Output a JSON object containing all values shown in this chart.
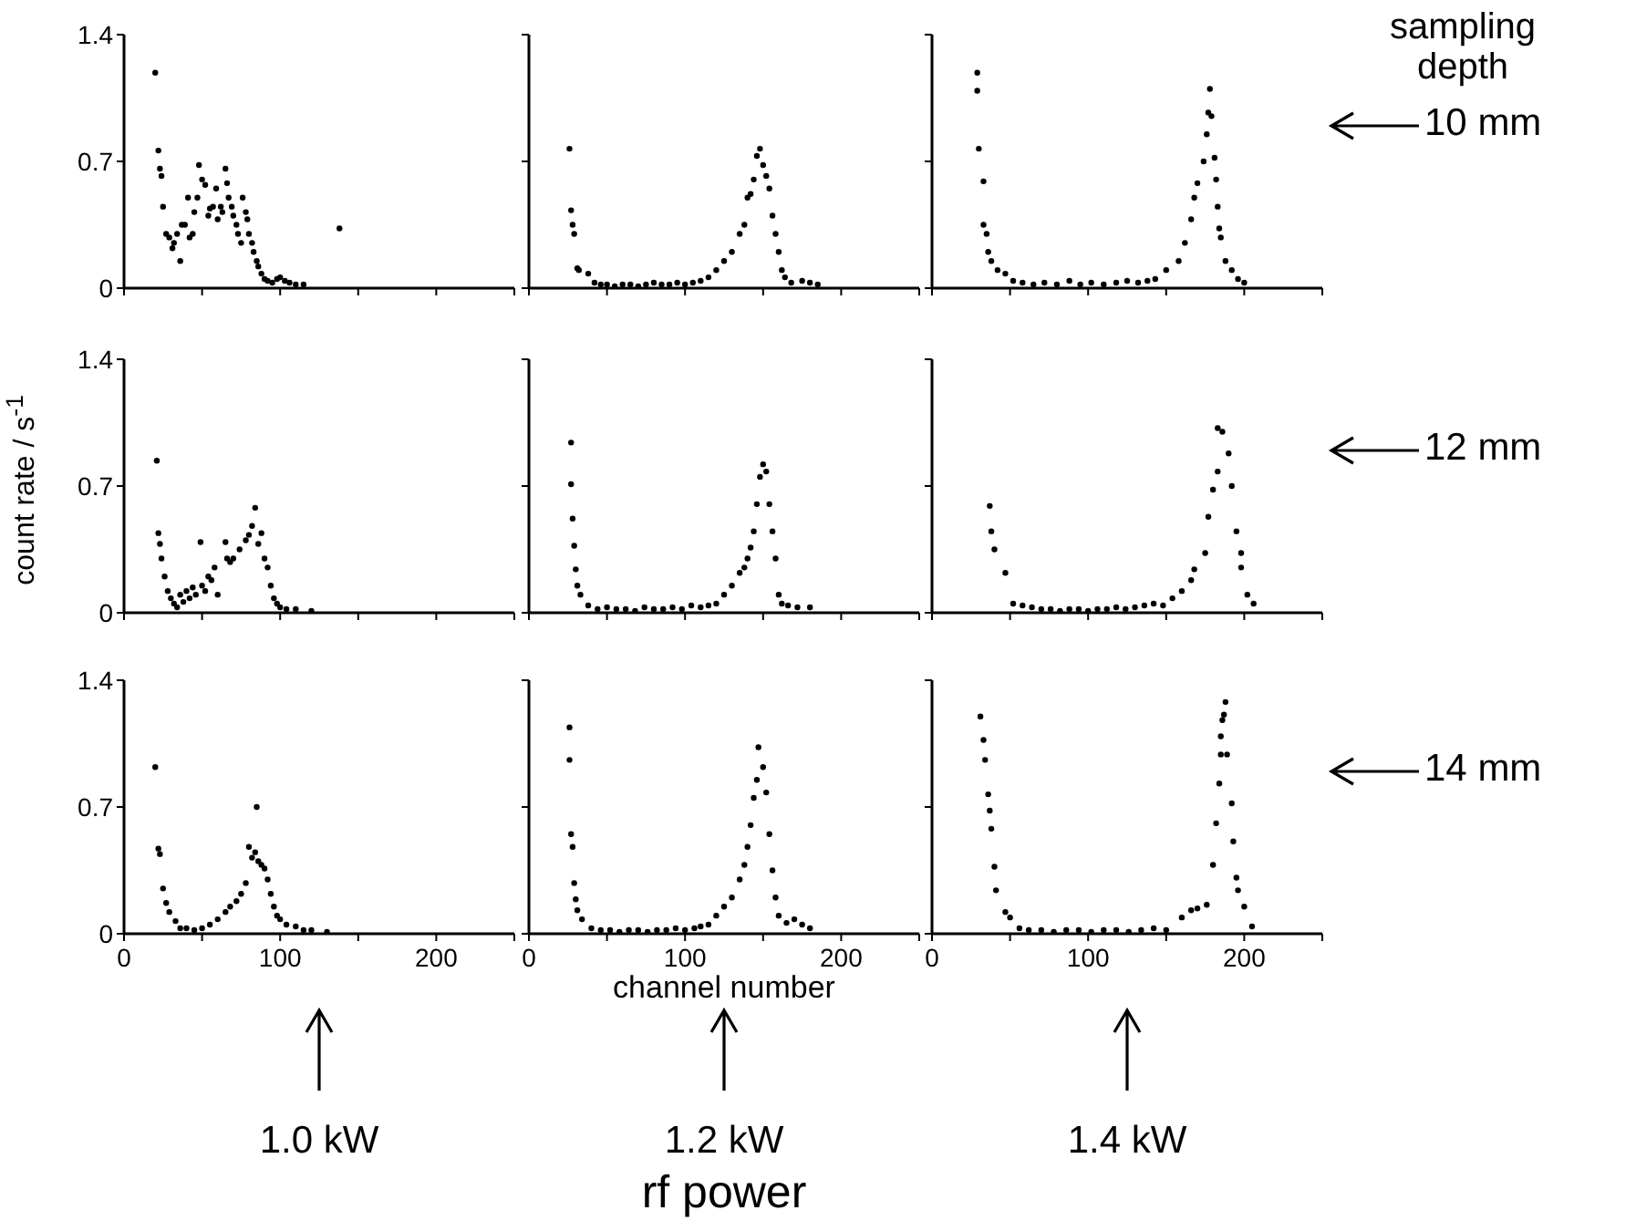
{
  "chart_data": [
    {
      "type": "scatter",
      "color": "#000000",
      "marker": "circle",
      "xlim": [
        0,
        250
      ],
      "xticks": [
        {
          "value": 0,
          "label": null
        },
        {
          "value": 50,
          "label": null
        },
        {
          "value": 100,
          "label": null
        },
        {
          "value": 150,
          "label": null
        },
        {
          "value": 200,
          "label": null
        },
        {
          "value": 250,
          "label": null
        }
      ],
      "ylim": [
        0,
        1.4
      ],
      "yticks": [
        0,
        0.7,
        1.4
      ],
      "tick_labels": "y",
      "x": [
        20,
        22,
        23,
        24,
        25,
        27,
        29,
        31,
        32,
        34,
        36,
        37,
        39,
        41,
        42,
        44,
        45,
        47,
        48,
        50,
        52,
        54,
        55,
        57,
        59,
        60,
        62,
        63,
        65,
        66,
        67,
        69,
        70,
        72,
        73,
        75,
        76,
        78,
        79,
        80,
        82,
        83,
        85,
        86,
        88,
        90,
        92,
        95,
        98,
        100,
        103,
        106,
        110,
        115,
        138
      ],
      "values": [
        1.19,
        0.76,
        0.66,
        0.62,
        0.45,
        0.3,
        0.28,
        0.22,
        0.25,
        0.3,
        0.15,
        0.35,
        0.35,
        0.5,
        0.28,
        0.3,
        0.42,
        0.5,
        0.68,
        0.6,
        0.57,
        0.4,
        0.44,
        0.45,
        0.55,
        0.38,
        0.45,
        0.42,
        0.66,
        0.58,
        0.5,
        0.45,
        0.4,
        0.35,
        0.3,
        0.25,
        0.5,
        0.42,
        0.38,
        0.3,
        0.25,
        0.2,
        0.15,
        0.12,
        0.08,
        0.05,
        0.04,
        0.03,
        0.05,
        0.06,
        0.04,
        0.03,
        0.02,
        0.02,
        0.33
      ]
    },
    {
      "type": "scatter",
      "color": "#000000",
      "marker": "circle",
      "xlim": [
        0,
        250
      ],
      "xticks": [
        {
          "value": 0,
          "label": null
        },
        {
          "value": 50,
          "label": null
        },
        {
          "value": 100,
          "label": null
        },
        {
          "value": 150,
          "label": null
        },
        {
          "value": 200,
          "label": null
        },
        {
          "value": 250,
          "label": null
        }
      ],
      "ylim": [
        0,
        1.4
      ],
      "yticks": [
        {
          "value": 0,
          "label": null
        },
        {
          "value": 0.7,
          "label": null
        },
        {
          "value": 1.4,
          "label": null
        }
      ],
      "tick_labels": false,
      "x": [
        26,
        27,
        28,
        29,
        31,
        32,
        38,
        42,
        46,
        50,
        55,
        60,
        65,
        70,
        75,
        80,
        85,
        90,
        95,
        100,
        105,
        110,
        115,
        120,
        125,
        130,
        135,
        138,
        140,
        142,
        144,
        146,
        148,
        150,
        152,
        154,
        156,
        158,
        160,
        162,
        164,
        168,
        175,
        180,
        185
      ],
      "values": [
        0.77,
        0.43,
        0.35,
        0.3,
        0.11,
        0.1,
        0.08,
        0.03,
        0.02,
        0.02,
        0.01,
        0.02,
        0.02,
        0.01,
        0.02,
        0.03,
        0.02,
        0.02,
        0.03,
        0.02,
        0.03,
        0.04,
        0.06,
        0.1,
        0.15,
        0.2,
        0.3,
        0.35,
        0.5,
        0.52,
        0.6,
        0.73,
        0.77,
        0.68,
        0.62,
        0.55,
        0.4,
        0.3,
        0.2,
        0.1,
        0.06,
        0.03,
        0.04,
        0.03,
        0.02
      ]
    },
    {
      "type": "scatter",
      "color": "#000000",
      "marker": "circle",
      "xlim": [
        0,
        250
      ],
      "xticks": [
        {
          "value": 0,
          "label": null
        },
        {
          "value": 50,
          "label": null
        },
        {
          "value": 100,
          "label": null
        },
        {
          "value": 150,
          "label": null
        },
        {
          "value": 200,
          "label": null
        },
        {
          "value": 250,
          "label": null
        }
      ],
      "ylim": [
        0,
        1.4
      ],
      "yticks": [
        {
          "value": 0,
          "label": null
        },
        {
          "value": 0.7,
          "label": null
        },
        {
          "value": 1.4,
          "label": null
        }
      ],
      "tick_labels": false,
      "annotations": [
        "sampling depth",
        "10 mm"
      ],
      "x": [
        29,
        29,
        30,
        33,
        33,
        35,
        36,
        38,
        42,
        47,
        52,
        58,
        65,
        72,
        80,
        88,
        95,
        102,
        110,
        118,
        125,
        132,
        138,
        143,
        150,
        158,
        162,
        166,
        168,
        170,
        174,
        176,
        177,
        178,
        179,
        181,
        182,
        183,
        184,
        185,
        188,
        192,
        196,
        200
      ],
      "values": [
        1.19,
        1.09,
        0.77,
        0.59,
        0.35,
        0.3,
        0.2,
        0.15,
        0.1,
        0.08,
        0.04,
        0.03,
        0.02,
        0.03,
        0.02,
        0.04,
        0.02,
        0.03,
        0.02,
        0.03,
        0.04,
        0.03,
        0.04,
        0.05,
        0.1,
        0.15,
        0.25,
        0.38,
        0.5,
        0.58,
        0.7,
        0.85,
        0.97,
        1.1,
        0.95,
        0.72,
        0.6,
        0.45,
        0.33,
        0.28,
        0.15,
        0.1,
        0.05,
        0.03
      ]
    },
    {
      "type": "scatter",
      "color": "#000000",
      "marker": "circle",
      "xlim": [
        0,
        250
      ],
      "xticks": [
        {
          "value": 0,
          "label": null
        },
        {
          "value": 50,
          "label": null
        },
        {
          "value": 100,
          "label": null
        },
        {
          "value": 150,
          "label": null
        },
        {
          "value": 200,
          "label": null
        },
        {
          "value": 250,
          "label": null
        }
      ],
      "ylim": [
        0,
        1.4
      ],
      "yticks": [
        0,
        0.7,
        1.4
      ],
      "tick_labels": "y",
      "ylabel": "count rate / s$^{-1}$",
      "x": [
        21,
        22,
        23,
        24,
        26,
        28,
        30,
        32,
        34,
        36,
        38,
        40,
        42,
        44,
        46,
        49,
        50,
        52,
        54,
        56,
        58,
        60,
        65,
        66,
        68,
        70,
        74,
        78,
        80,
        82,
        84,
        86,
        88,
        90,
        92,
        94,
        96,
        98,
        100,
        104,
        110,
        120
      ],
      "values": [
        0.84,
        0.44,
        0.38,
        0.3,
        0.2,
        0.12,
        0.08,
        0.05,
        0.03,
        0.1,
        0.06,
        0.12,
        0.08,
        0.14,
        0.1,
        0.39,
        0.15,
        0.12,
        0.2,
        0.18,
        0.25,
        0.1,
        0.39,
        0.3,
        0.28,
        0.3,
        0.35,
        0.4,
        0.43,
        0.48,
        0.58,
        0.38,
        0.44,
        0.3,
        0.25,
        0.15,
        0.08,
        0.05,
        0.03,
        0.02,
        0.02,
        0.01
      ]
    },
    {
      "type": "scatter",
      "color": "#000000",
      "marker": "circle",
      "xlim": [
        0,
        250
      ],
      "xticks": [
        {
          "value": 0,
          "label": null
        },
        {
          "value": 50,
          "label": null
        },
        {
          "value": 100,
          "label": null
        },
        {
          "value": 150,
          "label": null
        },
        {
          "value": 200,
          "label": null
        },
        {
          "value": 250,
          "label": null
        }
      ],
      "ylim": [
        0,
        1.4
      ],
      "yticks": [
        {
          "value": 0,
          "label": null
        },
        {
          "value": 0.7,
          "label": null
        },
        {
          "value": 1.4,
          "label": null
        }
      ],
      "tick_labels": false,
      "x": [
        27,
        27,
        28,
        29,
        30,
        31,
        33,
        38,
        44,
        50,
        56,
        62,
        68,
        74,
        80,
        86,
        92,
        98,
        104,
        110,
        115,
        120,
        125,
        130,
        135,
        138,
        140,
        142,
        144,
        146,
        148,
        150,
        152,
        154,
        156,
        158,
        160,
        162,
        166,
        172,
        180
      ],
      "values": [
        0.94,
        0.71,
        0.52,
        0.37,
        0.24,
        0.15,
        0.1,
        0.04,
        0.02,
        0.03,
        0.02,
        0.02,
        0.01,
        0.03,
        0.02,
        0.02,
        0.03,
        0.02,
        0.04,
        0.03,
        0.04,
        0.05,
        0.1,
        0.15,
        0.22,
        0.25,
        0.3,
        0.36,
        0.45,
        0.6,
        0.75,
        0.82,
        0.78,
        0.6,
        0.45,
        0.3,
        0.1,
        0.05,
        0.04,
        0.03,
        0.03
      ]
    },
    {
      "type": "scatter",
      "color": "#000000",
      "marker": "circle",
      "xlim": [
        0,
        250
      ],
      "xticks": [
        {
          "value": 0,
          "label": null
        },
        {
          "value": 50,
          "label": null
        },
        {
          "value": 100,
          "label": null
        },
        {
          "value": 150,
          "label": null
        },
        {
          "value": 200,
          "label": null
        },
        {
          "value": 250,
          "label": null
        }
      ],
      "ylim": [
        0,
        1.4
      ],
      "yticks": [
        {
          "value": 0,
          "label": null
        },
        {
          "value": 0.7,
          "label": null
        },
        {
          "value": 1.4,
          "label": null
        }
      ],
      "tick_labels": false,
      "annotations": [
        "12 mm"
      ],
      "x": [
        37,
        38,
        40,
        47,
        52,
        58,
        64,
        70,
        76,
        82,
        88,
        94,
        100,
        106,
        112,
        118,
        124,
        130,
        136,
        142,
        148,
        154,
        160,
        166,
        168,
        175,
        177,
        180,
        183,
        183,
        186,
        190,
        192,
        195,
        198,
        198,
        202,
        206
      ],
      "values": [
        0.59,
        0.45,
        0.35,
        0.22,
        0.05,
        0.04,
        0.03,
        0.02,
        0.02,
        0.01,
        0.02,
        0.02,
        0.01,
        0.02,
        0.02,
        0.03,
        0.02,
        0.03,
        0.04,
        0.05,
        0.04,
        0.08,
        0.12,
        0.18,
        0.24,
        0.33,
        0.53,
        0.68,
        0.78,
        1.02,
        1.0,
        0.88,
        0.7,
        0.45,
        0.33,
        0.25,
        0.1,
        0.05
      ]
    },
    {
      "type": "scatter",
      "color": "#000000",
      "marker": "circle",
      "xlim": [
        0,
        250
      ],
      "xticks": [
        0,
        {
          "value": 50,
          "label": null
        },
        100,
        {
          "value": 150,
          "label": null
        },
        200,
        {
          "value": 250,
          "label": null
        }
      ],
      "ylim": [
        0,
        1.4
      ],
      "yticks": [
        0,
        0.7,
        1.4
      ],
      "annotations": [
        "1.0 kW"
      ],
      "x": [
        20,
        22,
        23,
        25,
        27,
        29,
        33,
        36,
        40,
        45,
        50,
        55,
        60,
        65,
        68,
        72,
        75,
        78,
        80,
        82,
        84,
        85,
        86,
        88,
        90,
        92,
        94,
        96,
        98,
        100,
        104,
        110,
        115,
        120,
        130
      ],
      "values": [
        0.92,
        0.47,
        0.44,
        0.25,
        0.17,
        0.12,
        0.07,
        0.03,
        0.03,
        0.02,
        0.03,
        0.05,
        0.08,
        0.12,
        0.15,
        0.18,
        0.22,
        0.28,
        0.48,
        0.42,
        0.45,
        0.7,
        0.4,
        0.38,
        0.36,
        0.3,
        0.22,
        0.15,
        0.1,
        0.08,
        0.05,
        0.04,
        0.02,
        0.02,
        0.01
      ]
    },
    {
      "type": "scatter",
      "color": "#000000",
      "marker": "circle",
      "xlim": [
        0,
        250
      ],
      "xticks": [
        0,
        {
          "value": 50,
          "label": null
        },
        100,
        {
          "value": 150,
          "label": null
        },
        200,
        {
          "value": 250,
          "label": null
        }
      ],
      "ylim": [
        0,
        1.4
      ],
      "yticks": [
        {
          "value": 0,
          "label": null
        },
        {
          "value": 0.7,
          "label": null
        },
        {
          "value": 1.4,
          "label": null
        }
      ],
      "tick_labels": "x",
      "xlabel": "channel number",
      "annotations": [
        "1.2 kW",
        "rf power"
      ],
      "x": [
        26,
        26,
        27,
        28,
        29,
        30,
        31,
        34,
        40,
        46,
        52,
        58,
        64,
        70,
        76,
        82,
        88,
        94,
        100,
        106,
        110,
        115,
        120,
        125,
        130,
        135,
        138,
        140,
        142,
        144,
        146,
        147,
        150,
        152,
        154,
        156,
        158,
        160,
        165,
        170,
        175,
        180
      ],
      "values": [
        1.14,
        0.96,
        0.55,
        0.48,
        0.28,
        0.19,
        0.13,
        0.08,
        0.03,
        0.02,
        0.02,
        0.01,
        0.02,
        0.02,
        0.01,
        0.02,
        0.02,
        0.03,
        0.02,
        0.03,
        0.04,
        0.05,
        0.1,
        0.15,
        0.2,
        0.3,
        0.38,
        0.48,
        0.6,
        0.75,
        0.85,
        1.03,
        0.92,
        0.78,
        0.55,
        0.35,
        0.2,
        0.1,
        0.06,
        0.08,
        0.05,
        0.03
      ]
    },
    {
      "type": "scatter",
      "color": "#000000",
      "marker": "circle",
      "xlim": [
        0,
        250
      ],
      "xticks": [
        0,
        {
          "value": 50,
          "label": null
        },
        100,
        {
          "value": 150,
          "label": null
        },
        200,
        {
          "value": 250,
          "label": null
        }
      ],
      "ylim": [
        0,
        1.4
      ],
      "yticks": [
        {
          "value": 0,
          "label": null
        },
        {
          "value": 0.7,
          "label": null
        },
        {
          "value": 1.4,
          "label": null
        }
      ],
      "tick_labels": "x",
      "annotations": [
        "14 mm",
        "1.4 kW"
      ],
      "x": [
        31,
        33,
        34,
        36,
        37,
        38,
        40,
        41,
        47,
        50,
        56,
        62,
        70,
        78,
        86,
        94,
        102,
        110,
        118,
        126,
        134,
        142,
        150,
        160,
        166,
        170,
        176,
        180,
        182,
        184,
        185,
        185,
        186,
        187,
        188,
        189,
        192,
        193,
        195,
        196,
        200,
        205
      ],
      "values": [
        1.2,
        1.07,
        0.96,
        0.77,
        0.68,
        0.58,
        0.37,
        0.24,
        0.12,
        0.09,
        0.03,
        0.02,
        0.02,
        0.01,
        0.02,
        0.02,
        0.01,
        0.02,
        0.02,
        0.01,
        0.02,
        0.03,
        0.02,
        0.09,
        0.13,
        0.14,
        0.16,
        0.38,
        0.61,
        0.83,
        0.99,
        1.09,
        1.18,
        1.21,
        1.28,
        0.99,
        0.72,
        0.51,
        0.31,
        0.24,
        0.15,
        0.04
      ]
    }
  ]
}
